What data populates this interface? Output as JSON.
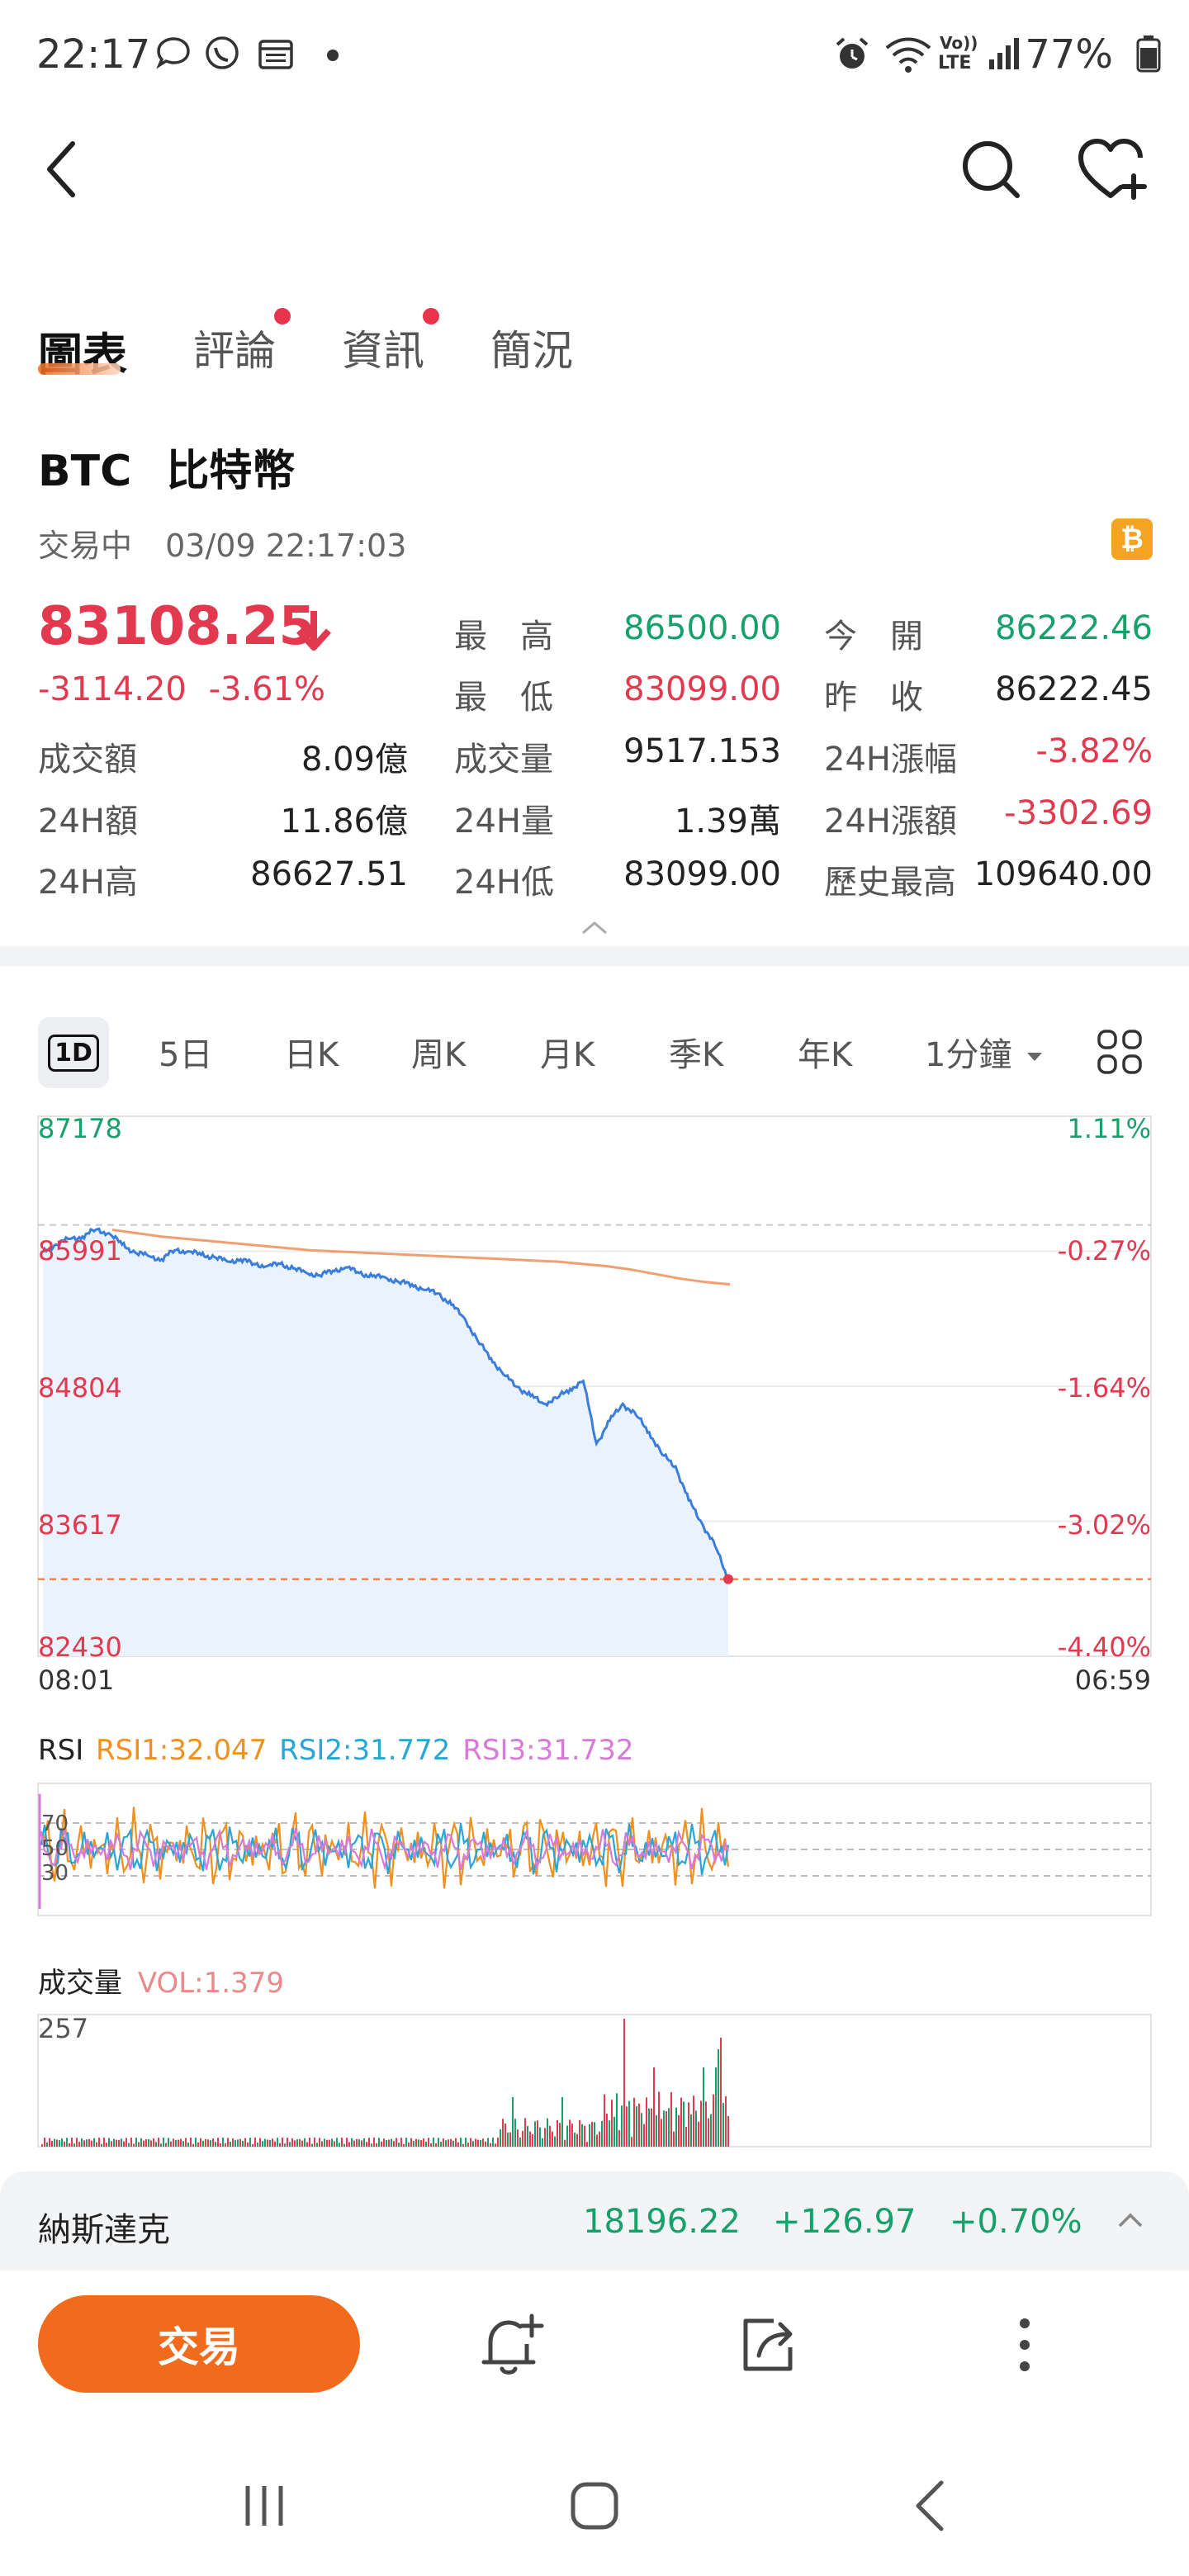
{
  "status": {
    "time": "22:17",
    "battery": "77%",
    "lte": "LTE",
    "volte": "Vo))"
  },
  "tabs": [
    {
      "label": "圖表",
      "active": true,
      "dot": false
    },
    {
      "label": "評論",
      "active": false,
      "dot": true
    },
    {
      "label": "資訊",
      "active": false,
      "dot": true
    },
    {
      "label": "簡況",
      "active": false,
      "dot": false
    }
  ],
  "instrument": {
    "symbol": "BTC",
    "name": "比特幣",
    "status": "交易中",
    "datetime": "03/09 22:17:03",
    "badge_icon": "bitcoin-icon",
    "price": "83108.25",
    "change": "-3114.20",
    "change_pct": "-3.61%"
  },
  "stats": {
    "high_label": "最　高",
    "high": "86500.00",
    "low_label": "最　低",
    "low": "83099.00",
    "open_label": "今　開",
    "open": "86222.46",
    "prev_label": "昨　收",
    "prev": "86222.45",
    "turnover_label": "成交額",
    "turnover": "8.09億",
    "volume_label": "成交量",
    "volume": "9517.153",
    "chg24_label": "24H漲幅",
    "chg24": "-3.82%",
    "amt24_label": "24H額",
    "amt24": "11.86億",
    "vol24_label": "24H量",
    "vol24": "1.39萬",
    "chgamt24_label": "24H漲額",
    "chgamt24": "-3302.69",
    "high24_label": "24H高",
    "high24": "86627.51",
    "low24_label": "24H低",
    "low24": "83099.00",
    "ath_label": "歷史最高",
    "ath": "109640.00"
  },
  "periods": [
    {
      "label": "1D",
      "active": true
    },
    {
      "label": "5日",
      "active": false
    },
    {
      "label": "日K",
      "active": false
    },
    {
      "label": "周K",
      "active": false
    },
    {
      "label": "月K",
      "active": false
    },
    {
      "label": "季K",
      "active": false
    },
    {
      "label": "年K",
      "active": false
    },
    {
      "label": "1分鐘",
      "active": false
    }
  ],
  "rsi_header": {
    "title": "RSI",
    "rsi1": "RSI1:32.047",
    "rsi2": "RSI2:31.772",
    "rsi3": "RSI3:31.732",
    "levels": [
      "70",
      "50",
      "30"
    ]
  },
  "vol_header": {
    "title": "成交量",
    "vol": "VOL:1.379",
    "max": "257"
  },
  "colors": {
    "green": "#16a06a",
    "red": "#e2394f",
    "orange": "#f26a1b",
    "line_blue": "#3a7ddb",
    "avg_orange": "#f0a070",
    "rsi1": "#f0901e",
    "rsi2": "#2aa6d6",
    "rsi3": "#d77ad8"
  },
  "ticker": {
    "name": "納斯達克",
    "value": "18196.22",
    "change": "+126.97",
    "change_pct": "+0.70%"
  },
  "actions": {
    "trade_label": "交易"
  },
  "chart_data": {
    "type": "line",
    "xlabels": [
      "08:01",
      "06:59"
    ],
    "y_ticks_left": [
      "87178",
      "85991",
      "84804",
      "83617",
      "82430"
    ],
    "y_ticks_right": [
      "1.11%",
      "-0.27%",
      "-1.64%",
      "-3.02%",
      "-4.40%"
    ],
    "ylim": [
      82430,
      87178
    ],
    "prev_close": 86222.45,
    "last_price": 83108.25,
    "series": [
      {
        "name": "price",
        "values": [
          85980,
          86050,
          86100,
          86120,
          86180,
          86150,
          86050,
          85980,
          85950,
          85920,
          86000,
          85990,
          85960,
          85940,
          85900,
          85920,
          85880,
          85860,
          85880,
          85840,
          85800,
          85780,
          85820,
          85850,
          85800,
          85770,
          85760,
          85720,
          85700,
          85650,
          85620,
          85520,
          85400,
          85200,
          85050,
          84900,
          84800,
          84720,
          84650,
          84700,
          84780,
          84850,
          84300,
          84500,
          84650,
          84550,
          84400,
          84200,
          84100,
          83800,
          83600,
          83400,
          83108
        ]
      },
      {
        "name": "avg",
        "values": [
          86180,
          86150,
          86120,
          86100,
          86080,
          86060,
          86040,
          86020,
          86000,
          85990,
          85980,
          85970,
          85960,
          85950,
          85940,
          85930,
          85920,
          85910,
          85900,
          85880,
          85860,
          85830,
          85790,
          85750,
          85720,
          85700
        ]
      }
    ]
  }
}
